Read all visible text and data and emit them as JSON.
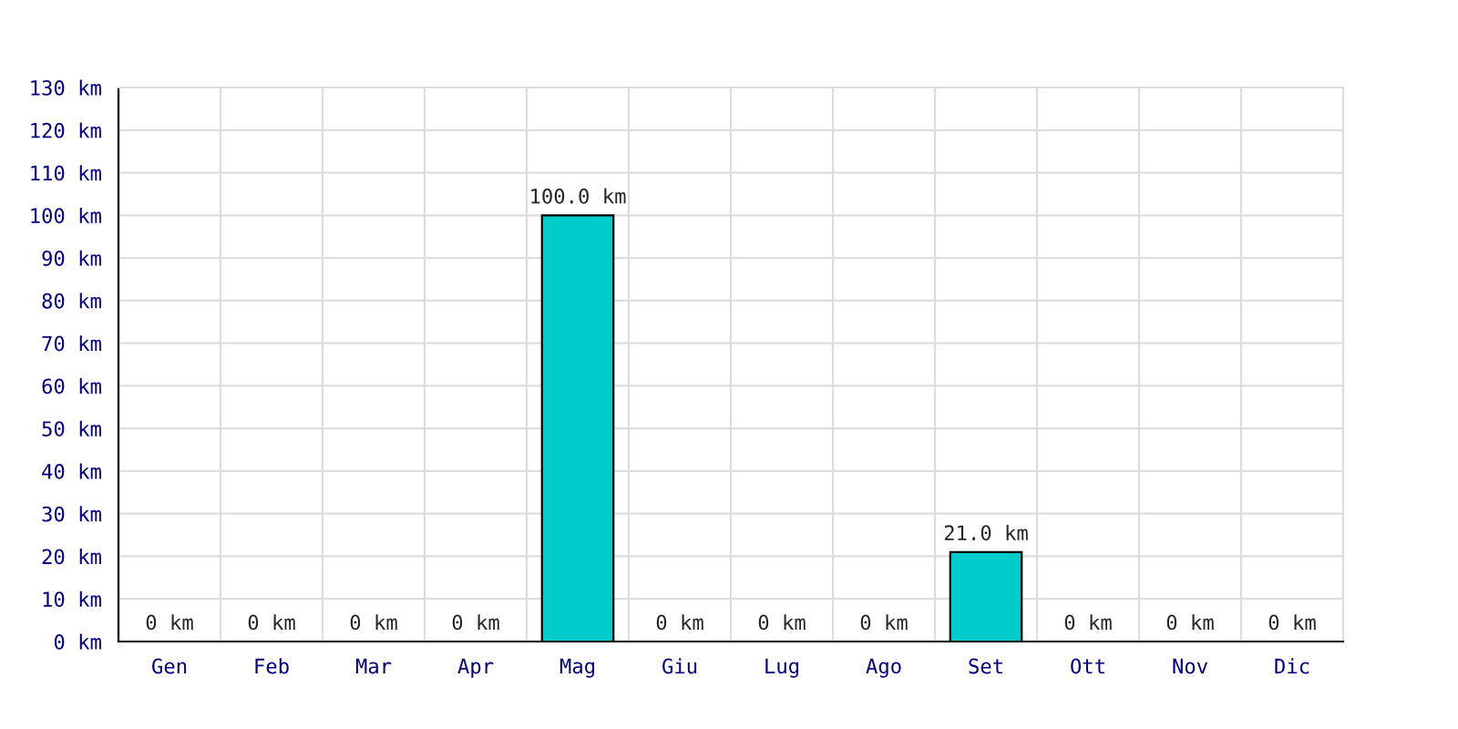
{
  "chart_data": {
    "type": "bar",
    "categories": [
      "Gen",
      "Feb",
      "Mar",
      "Apr",
      "Mag",
      "Giu",
      "Lug",
      "Ago",
      "Set",
      "Ott",
      "Nov",
      "Dic"
    ],
    "values": [
      0,
      0,
      0,
      0,
      100,
      0,
      0,
      0,
      21,
      0,
      0,
      0
    ],
    "value_labels": [
      "0 km",
      "0 km",
      "0 km",
      "0 km",
      "100.0 km",
      "0 km",
      "0 km",
      "0 km",
      "21.0 km",
      "0 km",
      "0 km",
      "0 km"
    ],
    "color": "#00cccc",
    "ylim": [
      0,
      130
    ],
    "yticks": [
      {
        "value": 0,
        "label": "0 km"
      },
      {
        "value": 10,
        "label": "10 km"
      },
      {
        "value": 20,
        "label": "20 km"
      },
      {
        "value": 30,
        "label": "30 km"
      },
      {
        "value": 40,
        "label": "40 km"
      },
      {
        "value": 50,
        "label": "50 km"
      },
      {
        "value": 60,
        "label": "60 km"
      },
      {
        "value": 70,
        "label": "70 km"
      },
      {
        "value": 80,
        "label": "80 km"
      },
      {
        "value": 90,
        "label": "90 km"
      },
      {
        "value": 100,
        "label": "100 km"
      },
      {
        "value": 110,
        "label": "110 km"
      },
      {
        "value": 120,
        "label": "120 km"
      },
      {
        "value": 130,
        "label": "130 km"
      }
    ],
    "grid": true
  }
}
